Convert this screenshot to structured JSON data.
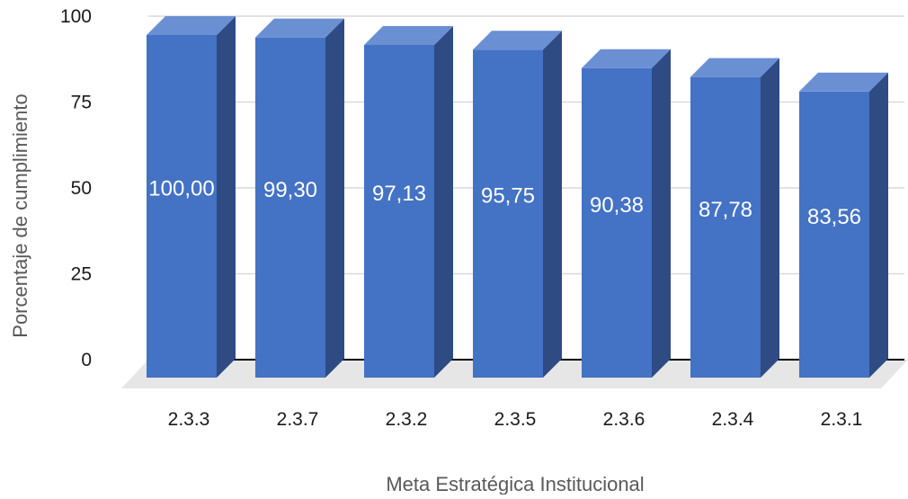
{
  "chart_data": {
    "type": "bar",
    "style": "3d-column",
    "title": "",
    "xlabel": "Meta Estratégica Institucional",
    "ylabel": "Porcentaje de cumplimiento",
    "categories": [
      "2.3.3",
      "2.3.7",
      "2.3.2",
      "2.3.5",
      "2.3.6",
      "2.3.4",
      "2.3.1"
    ],
    "values": [
      100.0,
      99.3,
      97.13,
      95.75,
      90.38,
      87.78,
      83.56
    ],
    "value_labels": [
      "100,00",
      "99,30",
      "97,13",
      "95,75",
      "90,38",
      "87,78",
      "83,56"
    ],
    "yticks": [
      "0",
      "25",
      "50",
      "75",
      "100"
    ],
    "ytick_values": [
      0,
      25,
      50,
      75,
      100
    ],
    "ylim": [
      0,
      100
    ],
    "grid": true,
    "legend": "none",
    "colors": {
      "front": "#4472C4",
      "top": "#6A8FD3",
      "side": "#2E4B84",
      "gridline": "#d9d9d9",
      "baseline": "#000000",
      "floor": "#e6e6e6"
    }
  }
}
